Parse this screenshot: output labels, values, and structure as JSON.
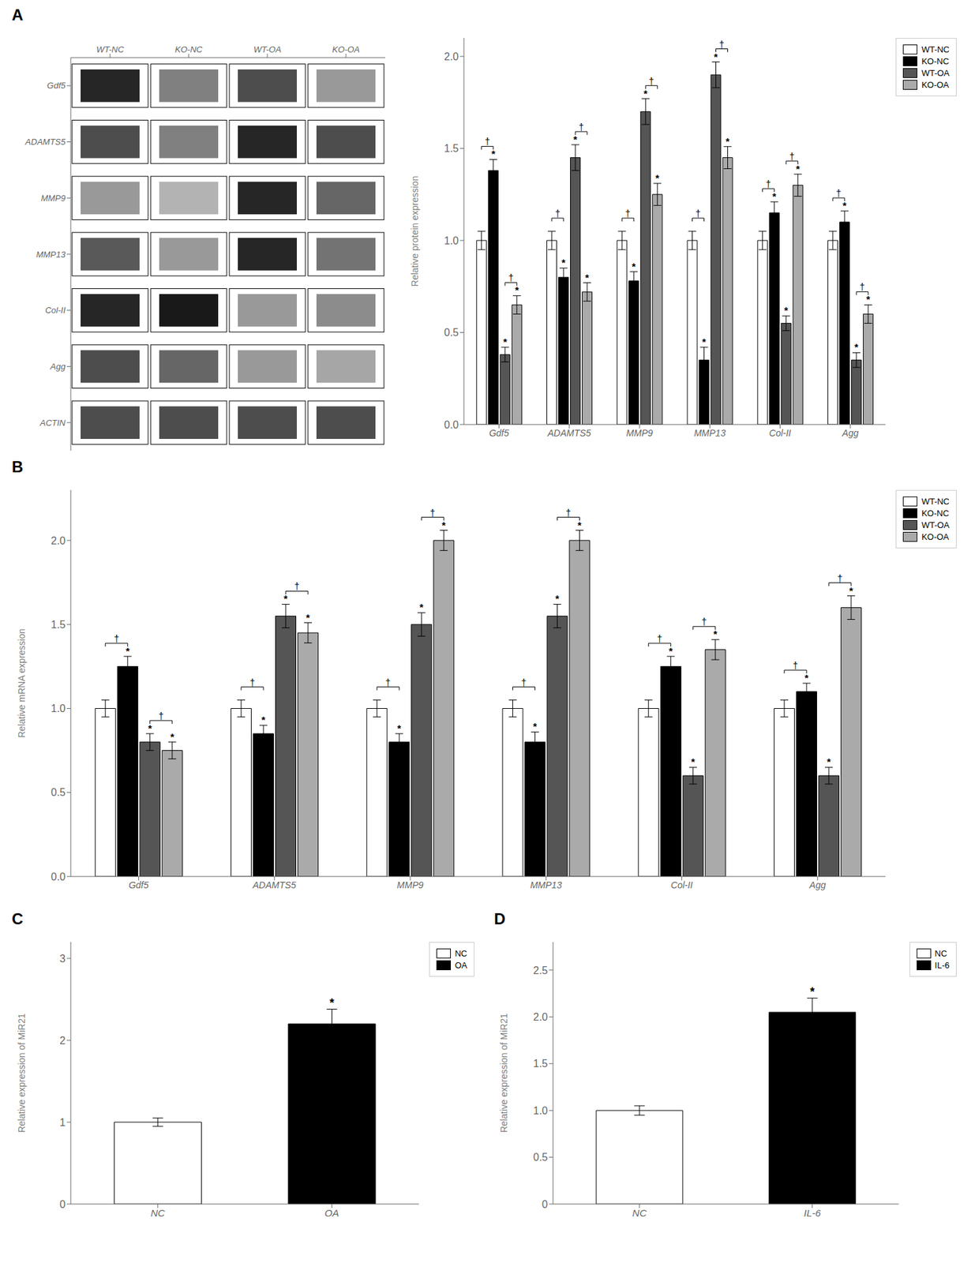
{
  "chart_data": [
    {
      "type": "heatmap",
      "title": "A",
      "x": [
        "WT-NC",
        "KO-NC",
        "WT-OA",
        "KO-OA"
      ],
      "y": [
        "Gdf5",
        "ADAMTS5",
        "MMP9",
        "MMP13",
        "Col-II",
        "Agg",
        "ACTIN"
      ],
      "cells": [
        [
          0.85,
          0.5,
          0.7,
          0.4
        ],
        [
          0.7,
          0.5,
          0.85,
          0.7
        ],
        [
          0.4,
          0.3,
          0.85,
          0.6
        ],
        [
          0.65,
          0.4,
          0.85,
          0.55
        ],
        [
          0.85,
          0.9,
          0.4,
          0.45
        ],
        [
          0.7,
          0.6,
          0.4,
          0.35
        ],
        [
          0.7,
          0.7,
          0.7,
          0.7
        ]
      ]
    },
    {
      "type": "bar",
      "categories": [
        "Gdf5",
        "ADAMTS5",
        "MMP9",
        "MMP13",
        "Col-II",
        "Agg"
      ],
      "series": [
        {
          "name": "WT-NC",
          "color": "white",
          "values": [
            1.0,
            1.0,
            1.0,
            1.0,
            1.0,
            1.0
          ],
          "errors": [
            0.05,
            0.05,
            0.05,
            0.05,
            0.05,
            0.05
          ],
          "annotations": [
            null,
            null,
            null,
            null,
            null,
            null
          ]
        },
        {
          "name": "KO-NC",
          "color": "black",
          "values": [
            1.38,
            0.8,
            0.78,
            0.35,
            1.15,
            1.1
          ],
          "errors": [
            0.06,
            0.05,
            0.05,
            0.07,
            0.06,
            0.06
          ],
          "annotations": [
            "*",
            "*",
            "*",
            "*",
            "*",
            "*"
          ]
        },
        {
          "name": "WT-OA",
          "color": "#555555",
          "values": [
            0.38,
            1.45,
            1.7,
            1.9,
            0.55,
            0.35
          ],
          "errors": [
            0.04,
            0.07,
            0.07,
            0.07,
            0.04,
            0.04
          ],
          "annotations": [
            "*",
            "*",
            "*",
            "*",
            "*",
            "*"
          ]
        },
        {
          "name": "KO-OA",
          "color": "#aaaaaa",
          "values": [
            0.65,
            0.72,
            1.25,
            1.45,
            1.3,
            0.6
          ],
          "errors": [
            0.05,
            0.05,
            0.06,
            0.06,
            0.06,
            0.05
          ],
          "annotations": [
            "*",
            "*",
            "*",
            "*",
            "*",
            "*"
          ]
        }
      ],
      "brackets": [
        {
          "category": "Gdf5",
          "between": [
            "WT-NC",
            "KO-NC"
          ],
          "label": "†"
        },
        {
          "category": "Gdf5",
          "between": [
            "WT-OA",
            "KO-OA"
          ],
          "label": "†"
        },
        {
          "category": "ADAMTS5",
          "between": [
            "WT-NC",
            "KO-NC"
          ],
          "label": "†"
        },
        {
          "category": "ADAMTS5",
          "between": [
            "WT-OA",
            "KO-OA"
          ],
          "label": "†"
        },
        {
          "category": "MMP9",
          "between": [
            "WT-NC",
            "KO-NC"
          ],
          "label": "†"
        },
        {
          "category": "MMP9",
          "between": [
            "WT-OA",
            "KO-OA"
          ],
          "label": "†"
        },
        {
          "category": "MMP13",
          "between": [
            "WT-NC",
            "KO-NC"
          ],
          "label": "†"
        },
        {
          "category": "MMP13",
          "between": [
            "WT-OA",
            "KO-OA"
          ],
          "label": "†"
        },
        {
          "category": "Col-II",
          "between": [
            "WT-NC",
            "KO-NC"
          ],
          "label": "†"
        },
        {
          "category": "Col-II",
          "between": [
            "WT-OA",
            "KO-OA"
          ],
          "label": "†"
        },
        {
          "category": "Agg",
          "between": [
            "WT-NC",
            "KO-NC"
          ],
          "label": "†"
        },
        {
          "category": "Agg",
          "between": [
            "WT-OA",
            "KO-OA"
          ],
          "label": "†"
        }
      ],
      "ylim": [
        0,
        2.1
      ],
      "yticks": [
        {
          "value": 0,
          "label": "0.0"
        },
        0.5,
        {
          "value": 1,
          "label": "1.0"
        },
        1.5,
        {
          "value": 2,
          "label": "2.0"
        }
      ],
      "ylabel": "Relative protein expression",
      "legend": "upper right",
      "grid": false
    },
    {
      "type": "bar",
      "title": "B",
      "categories": [
        "Gdf5",
        "ADAMTS5",
        "MMP9",
        "MMP13",
        "Col-II",
        "Agg"
      ],
      "series": [
        {
          "name": "WT-NC",
          "color": "white",
          "values": [
            1.0,
            1.0,
            1.0,
            1.0,
            1.0,
            1.0
          ],
          "errors": [
            0.05,
            0.05,
            0.05,
            0.05,
            0.05,
            0.05
          ],
          "annotations": [
            null,
            null,
            null,
            null,
            null,
            null
          ]
        },
        {
          "name": "KO-NC",
          "color": "black",
          "values": [
            1.25,
            0.85,
            0.8,
            0.8,
            1.25,
            1.1
          ],
          "errors": [
            0.06,
            0.05,
            0.05,
            0.06,
            0.06,
            0.05
          ],
          "annotations": [
            "*",
            "*",
            "*",
            "*",
            "*",
            "*"
          ]
        },
        {
          "name": "WT-OA",
          "color": "#555555",
          "values": [
            0.8,
            1.55,
            1.5,
            1.55,
            0.6,
            0.6
          ],
          "errors": [
            0.05,
            0.07,
            0.07,
            0.07,
            0.05,
            0.05
          ],
          "annotations": [
            "*",
            "*",
            "*",
            "*",
            "*",
            "*"
          ]
        },
        {
          "name": "KO-OA",
          "color": "#aaaaaa",
          "values": [
            0.75,
            1.45,
            2.0,
            2.0,
            1.35,
            1.6
          ],
          "errors": [
            0.05,
            0.06,
            0.06,
            0.06,
            0.06,
            0.07
          ],
          "annotations": [
            "*",
            "*",
            "*",
            "*",
            "*",
            "*"
          ]
        }
      ],
      "brackets": [
        {
          "category": "Gdf5",
          "between": [
            "WT-NC",
            "KO-NC"
          ],
          "label": "†"
        },
        {
          "category": "Gdf5",
          "between": [
            "WT-OA",
            "KO-OA"
          ],
          "label": "†"
        },
        {
          "category": "ADAMTS5",
          "between": [
            "WT-NC",
            "KO-NC"
          ],
          "label": "†"
        },
        {
          "category": "ADAMTS5",
          "between": [
            "WT-OA",
            "KO-OA"
          ],
          "label": "†"
        },
        {
          "category": "MMP9",
          "between": [
            "WT-NC",
            "KO-NC"
          ],
          "label": "†"
        },
        {
          "category": "MMP9",
          "between": [
            "WT-OA",
            "KO-OA"
          ],
          "label": "†"
        },
        {
          "category": "MMP13",
          "between": [
            "WT-NC",
            "KO-NC"
          ],
          "label": "†"
        },
        {
          "category": "MMP13",
          "between": [
            "WT-OA",
            "KO-OA"
          ],
          "label": "†"
        },
        {
          "category": "Col-II",
          "between": [
            "WT-NC",
            "KO-NC"
          ],
          "label": "†"
        },
        {
          "category": "Col-II",
          "between": [
            "WT-OA",
            "KO-OA"
          ],
          "label": "†"
        },
        {
          "category": "Agg",
          "between": [
            "WT-NC",
            "KO-NC"
          ],
          "label": "†"
        },
        {
          "category": "Agg",
          "between": [
            "WT-OA",
            "KO-OA"
          ],
          "label": "†"
        }
      ],
      "ylim": [
        0,
        2.3
      ],
      "yticks": [
        {
          "value": 0,
          "label": "0.0"
        },
        0.5,
        {
          "value": 1,
          "label": "1.0"
        },
        1.5,
        {
          "value": 2,
          "label": "2.0"
        }
      ],
      "ylabel": "Relative mRNA expression",
      "legend": "upper right",
      "grid": false
    },
    {
      "type": "bar",
      "title": "C",
      "categories": [
        "NC",
        "OA"
      ],
      "values": [
        1.0,
        2.2
      ],
      "errors": [
        0.05,
        0.18
      ],
      "colors": [
        "white",
        "black"
      ],
      "annotations": [
        null,
        "*"
      ],
      "ylim": [
        0,
        3.2
      ],
      "yticks": [
        0,
        1,
        2,
        3
      ],
      "ylabel": "Relative expression of MiR21",
      "legend": "upper right",
      "grid": false
    },
    {
      "type": "bar",
      "title": "D",
      "categories": [
        "NC",
        "IL-6"
      ],
      "values": [
        1.0,
        2.05
      ],
      "errors": [
        0.05,
        0.15
      ],
      "colors": [
        "white",
        "black"
      ],
      "annotations": [
        null,
        "*"
      ],
      "ylim": [
        0,
        2.8
      ],
      "yticks": [
        0,
        0.5,
        {
          "value": 1,
          "label": "1.0"
        },
        1.5,
        {
          "value": 2,
          "label": "2.0"
        },
        2.5
      ],
      "ylabel": "Relative expression of MiR21",
      "legend": "upper right",
      "grid": false
    }
  ]
}
